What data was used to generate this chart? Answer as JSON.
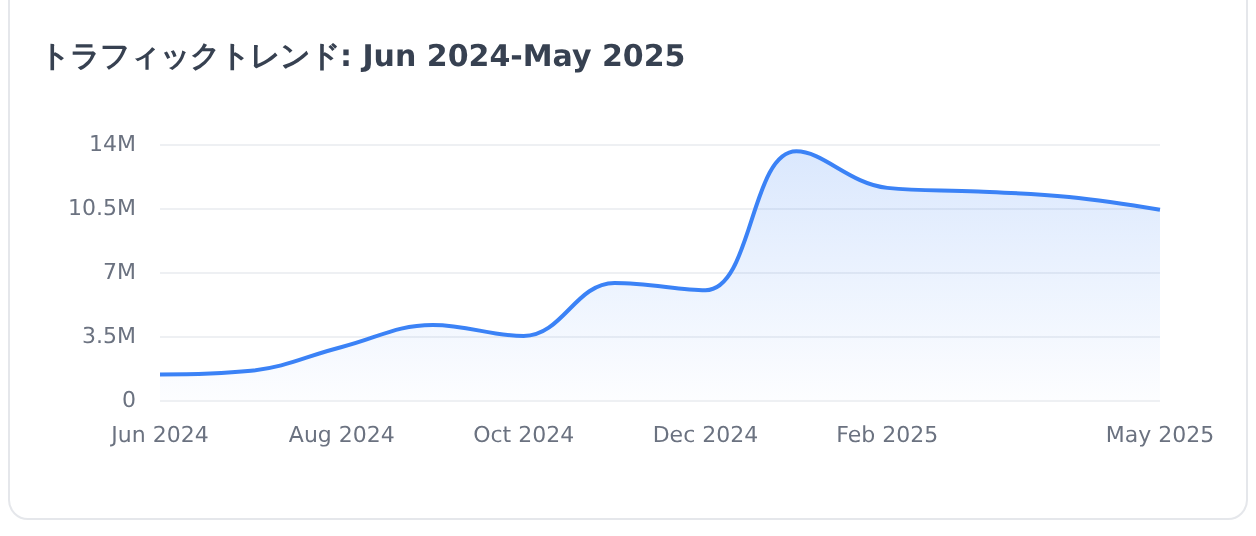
{
  "chart_data": {
    "type": "area",
    "title": "トラフィックトレンド: Jun 2024-May 2025",
    "categories": [
      "Jun 2024",
      null,
      "Aug 2024",
      null,
      "Oct 2024",
      null,
      "Dec 2024",
      null,
      "Feb 2025",
      null,
      null,
      "May 2025"
    ],
    "series": [
      {
        "color": "#3b82f6",
        "values": [
          1.4,
          1.6,
          2.9,
          4.1,
          3.5,
          6.4,
          6.0,
          13.6,
          11.6,
          11.4,
          11.1,
          10.4
        ]
      }
    ],
    "ylim": [
      0,
      14
    ],
    "yticks": [
      {
        "value": 0,
        "label": "0"
      },
      {
        "value": 3.5,
        "label": "3.5M"
      },
      {
        "value": 7,
        "label": "7M"
      },
      {
        "value": 10.5,
        "label": "10.5M"
      },
      {
        "value": 14,
        "label": "14M"
      }
    ],
    "grid": "y",
    "marker": "none"
  }
}
